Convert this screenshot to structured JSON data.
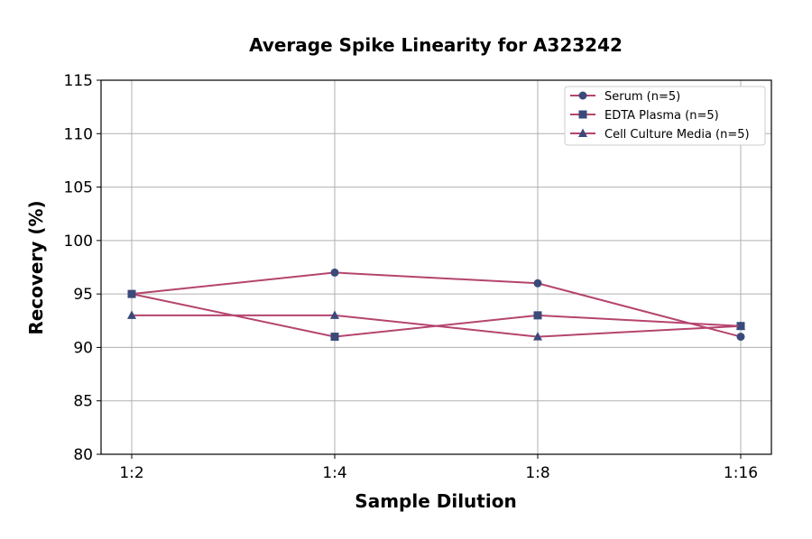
{
  "chart_data": {
    "type": "line",
    "title": "Average Spike Linearity for A323242",
    "xlabel": "Sample Dilution",
    "ylabel": "Recovery (%)",
    "categories": [
      "1:2",
      "1:4",
      "1:8",
      "1:16"
    ],
    "ylim": [
      80,
      115
    ],
    "yticks": [
      80,
      85,
      90,
      95,
      100,
      105,
      110,
      115
    ],
    "grid": true,
    "legend_position": "top-right",
    "line_color": "#b5446e",
    "marker_color": "#3b4a7a",
    "series": [
      {
        "name": "Serum (n=5)",
        "marker": "circle",
        "values": [
          95,
          97,
          96,
          91
        ]
      },
      {
        "name": "EDTA Plasma (n=5)",
        "marker": "square",
        "values": [
          95,
          91,
          93,
          92
        ]
      },
      {
        "name": "Cell Culture Media (n=5)",
        "marker": "triangle",
        "values": [
          93,
          93,
          91,
          92
        ]
      }
    ]
  }
}
